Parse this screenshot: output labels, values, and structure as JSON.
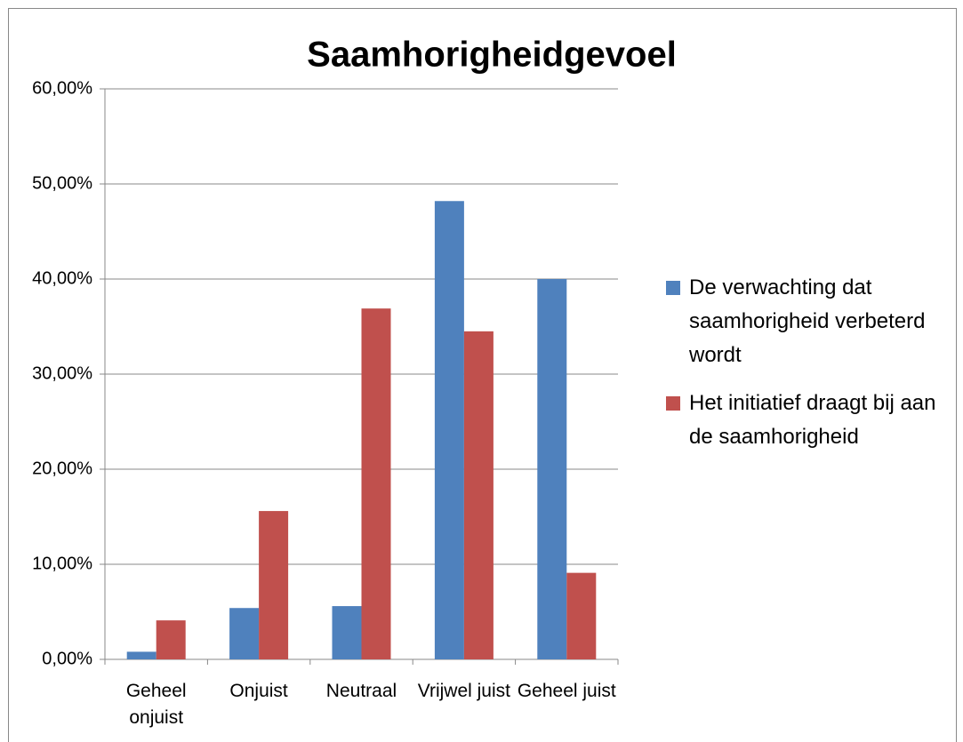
{
  "chart_data": {
    "type": "bar",
    "title": "Saamhorigheidgevoel",
    "categories": [
      "Geheel onjuist",
      "Onjuist",
      "Neutraal",
      "Vrijwel juist",
      "Geheel juist"
    ],
    "series": [
      {
        "name": "De verwachting dat saamhorigheid verbeterd wordt",
        "color": "#4f81bd",
        "values": [
          0.8,
          5.4,
          5.6,
          48.2,
          40.0
        ]
      },
      {
        "name": "Het initiatief draagt bij aan de saamhorigheid",
        "color": "#c0504d",
        "values": [
          4.1,
          15.6,
          36.9,
          34.5,
          9.1
        ]
      }
    ],
    "ylim": [
      0,
      60
    ],
    "yticks": [
      {
        "value": 0,
        "label": "0,00%"
      },
      {
        "value": 10,
        "label": "10,00%"
      },
      {
        "value": 20,
        "label": "20,00%"
      },
      {
        "value": 30,
        "label": "30,00%"
      },
      {
        "value": 40,
        "label": "40,00%"
      },
      {
        "value": 50,
        "label": "50,00%"
      },
      {
        "value": 60,
        "label": "60,00%"
      }
    ],
    "grid": true,
    "legend": "right"
  }
}
